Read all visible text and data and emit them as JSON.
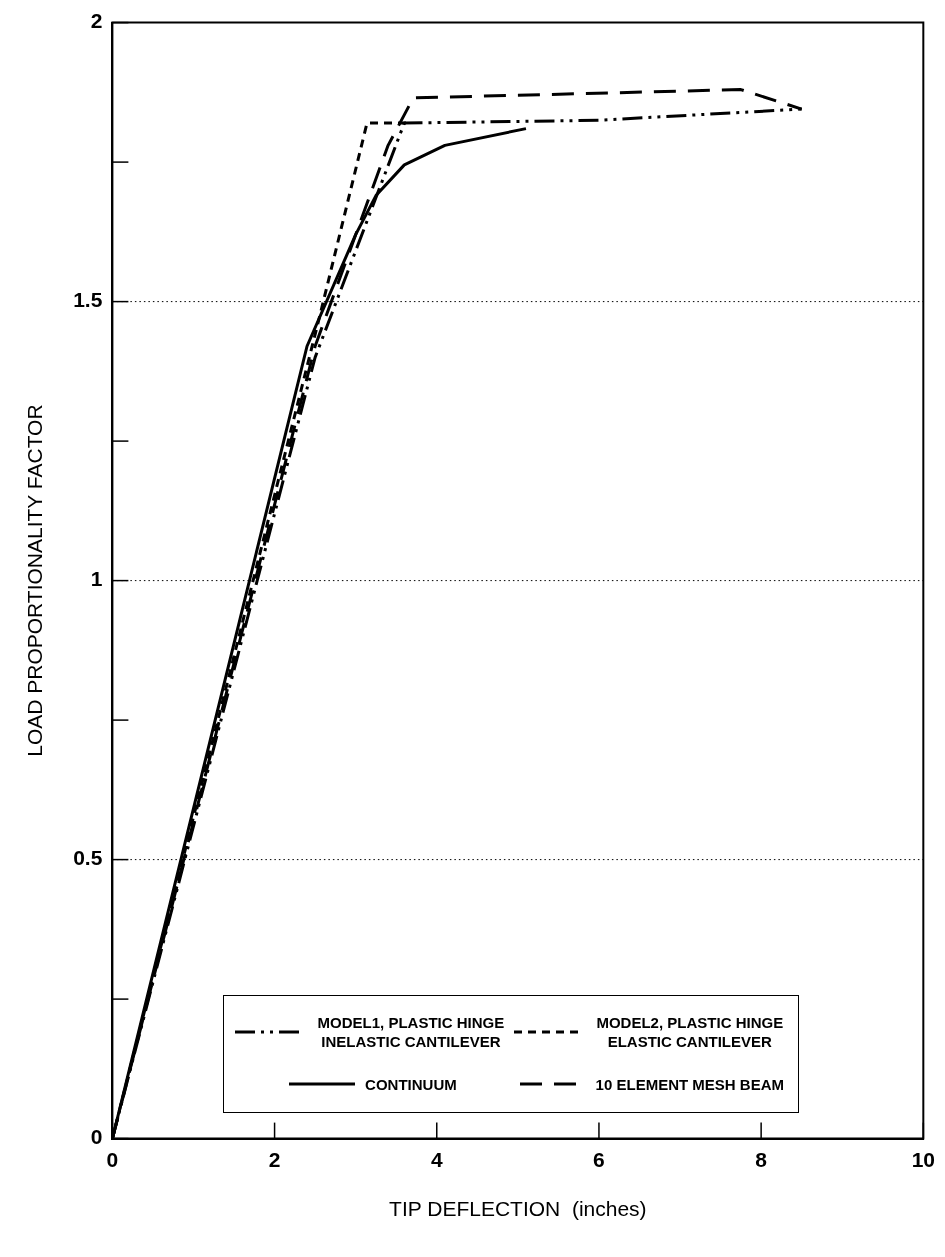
{
  "chart_data": {
    "type": "line",
    "xlabel": "TIP DEFLECTION  (inches)",
    "ylabel": "LOAD PROPORTIONALITY FACTOR",
    "xlim": [
      0,
      10
    ],
    "xticks": [
      0,
      2,
      4,
      6,
      8,
      10
    ],
    "ylim": [
      0,
      2
    ],
    "yticks": [
      0,
      {
        "value": 0.25,
        "label": null
      },
      0.5,
      {
        "value": 0.75,
        "label": null
      },
      1,
      {
        "value": 1.25,
        "label": null
      },
      1.5,
      {
        "value": 1.75,
        "label": null
      },
      2
    ],
    "grid": "y",
    "legend": "bottom",
    "marker": "none",
    "series": [
      {
        "name": "MODEL1, PLASTIC HINGE INELASTIC CANTILEVER",
        "color": "#000000",
        "line_style": "dashdot",
        "x": [
          0,
          2.5,
          3.6,
          6.0,
          8.5
        ],
        "values": [
          0,
          1.4,
          1.82,
          1.825,
          1.845
        ]
      },
      {
        "name": "MODEL2, PLASTIC HINGE ELASTIC CANTILEVER",
        "color": "#000000",
        "line_style": "dotted",
        "x": [
          0,
          2.55,
          3.14,
          3.65
        ],
        "values": [
          0,
          1.47,
          1.82,
          1.82
        ]
      },
      {
        "name": "CONTINUUM",
        "color": "#000000",
        "line_style": "solid",
        "x": [
          0,
          2.4,
          3.0,
          3.25,
          3.6,
          4.1,
          5.1
        ],
        "values": [
          0,
          1.42,
          1.62,
          1.69,
          1.745,
          1.78,
          1.81
        ]
      },
      {
        "name": "10 ELEMENT MESH BEAM",
        "color": "#000000",
        "line_style": "dashed",
        "x": [
          0,
          2.5,
          3.4,
          3.71,
          7.75,
          8.5
        ],
        "values": [
          0,
          1.42,
          1.78,
          1.865,
          1.88,
          1.845
        ]
      }
    ]
  }
}
